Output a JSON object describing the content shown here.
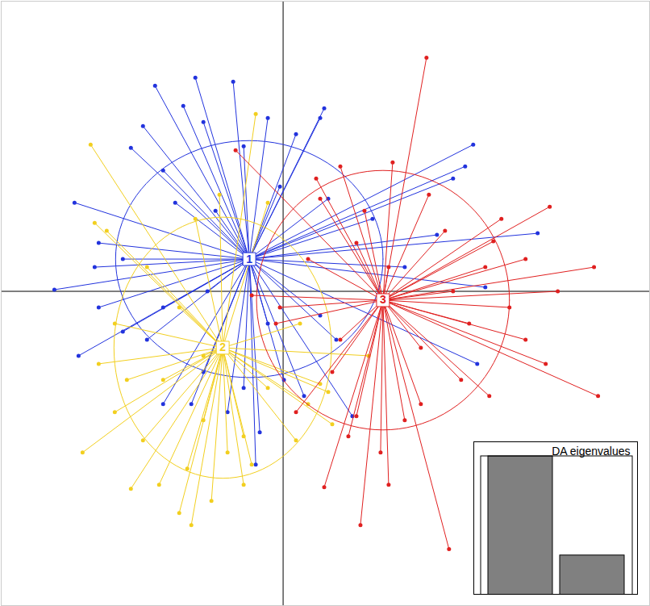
{
  "chart_data": {
    "type": "scatter",
    "xlim": [
      -7,
      9.1
    ],
    "ylim": [
      -7.8,
      7.2
    ],
    "xticks": [
      0
    ],
    "yticks": [
      0
    ],
    "grid": true,
    "tick_labels": false,
    "series": [
      {
        "name": "1",
        "color": "#2233dd",
        "center": [
          -0.84,
          0.8
        ],
        "ellipse": {
          "rx": 3.32,
          "ry": 2.94
        },
        "x": [
          -3.18,
          -2.18,
          -1.24,
          -0.38,
          1.02,
          0.92,
          0.32,
          -3.78,
          -3.48,
          -2.48,
          -2.98,
          -2.68,
          -4.58,
          -4.68,
          -5.68,
          -5.08,
          -4.58,
          -3.98,
          -3.38,
          -2.98,
          -2.28,
          -1.38,
          -0.68,
          -0.58,
          -0.98,
          -1.98,
          0.02,
          0.52,
          1.72,
          1.32,
          2.22,
          4.72,
          4.52,
          6.32,
          4.22,
          5.02,
          3.02,
          3.82,
          1.12,
          0.92,
          4.82,
          -3.98,
          -1.98,
          -0.98,
          -1.68,
          -0.08,
          -5.18,
          -2.98,
          -0.38,
          -1.88
        ],
        "y": [
          5.1,
          5.3,
          5.2,
          4.3,
          4.54,
          4.3,
          3.9,
          3.56,
          4.1,
          4.6,
          3.0,
          2.2,
          1.2,
          0.6,
          0.04,
          -1.6,
          -0.4,
          -1.0,
          -1.2,
          -2.8,
          -2.8,
          -3.0,
          -4.3,
          -3.5,
          -2.4,
          -2.0,
          -2.2,
          -2.6,
          -3.1,
          -1.2,
          1.8,
          3.64,
          3.1,
          1.44,
          2.8,
          0.1,
          0.6,
          1.4,
          2.3,
          -0.6,
          -1.8,
          0.8,
          4.2,
          3.6,
          2.0,
          2.6,
          2.2,
          -0.4,
          -0.8,
          0.0
        ]
      },
      {
        "name": "2",
        "color": "#f2cf1f",
        "center": [
          -1.5,
          -1.4
        ],
        "ellipse": {
          "rx": 2.7,
          "ry": 3.24
        },
        "x": [
          -4.78,
          -0.68,
          -4.68,
          -4.38,
          -4.98,
          -3.78,
          -2.58,
          -2.28,
          -1.78,
          -0.98,
          -0.78,
          0.32,
          0.62,
          1.12,
          1.22,
          0.92,
          0.42,
          2.12,
          -3.48,
          -4.18,
          -4.58,
          -2.98,
          -1.98,
          -1.38,
          -2.58,
          -3.38,
          -2.18,
          -1.58,
          -0.38,
          -2.38,
          -3.08,
          -0.98,
          -1.98,
          -0.38,
          -3.88,
          -4.18
        ],
        "y": [
          3.64,
          4.4,
          1.7,
          1.5,
          -4.0,
          -4.9,
          -5.5,
          -5.8,
          -5.2,
          -4.8,
          -4.3,
          -3.7,
          -2.8,
          -2.5,
          -3.3,
          -2.3,
          -0.8,
          -1.6,
          -3.7,
          -3.0,
          -1.8,
          -2.2,
          -3.2,
          -4.0,
          -0.4,
          0.6,
          1.8,
          2.4,
          2.2,
          -4.4,
          -4.8,
          -3.6,
          -1.6,
          -2.4,
          -2.2,
          -0.8
        ]
      },
      {
        "name": "3",
        "color": "#e02020",
        "center": [
          2.48,
          -0.22
        ],
        "ellipse": {
          "rx": 3.14,
          "ry": 3.22
        },
        "x": [
          3.56,
          2.72,
          1.42,
          0.92,
          0.82,
          6.62,
          7.72,
          6.82,
          7.82,
          6.52,
          5.12,
          4.42,
          4.12,
          1.92,
          1.02,
          0.32,
          1.82,
          -0.18,
          -0.08,
          -0.78,
          -1.18,
          5.22,
          5.42,
          4.02,
          5.02,
          4.62,
          3.42,
          3.02,
          2.42,
          2.62,
          1.62,
          1.42,
          0.62,
          1.82,
          3.62,
          4.22,
          5.62,
          6.02,
          2.02,
          2.62,
          3.42,
          1.22,
          6.02
        ],
        "y": [
          5.8,
          3.2,
          3.1,
          2.3,
          2.8,
          2.1,
          0.6,
          0.0,
          -2.6,
          -1.8,
          -2.6,
          -2.2,
          -6.4,
          -5.8,
          -4.86,
          -3.0,
          -3.1,
          -0.8,
          -0.4,
          -0.1,
          3.5,
          1.24,
          1.8,
          1.5,
          0.6,
          -0.8,
          -1.4,
          -3.2,
          -4.0,
          -4.8,
          -3.6,
          -1.2,
          0.8,
          1.2,
          2.4,
          0.0,
          -0.4,
          0.8,
          2.0,
          0.6,
          -2.8,
          -2.0,
          -1.2
        ]
      }
    ],
    "inset": {
      "type": "bar",
      "title": "DA eigenvalues",
      "values": [
        3.5,
        1.0
      ],
      "color": "#808080"
    }
  }
}
